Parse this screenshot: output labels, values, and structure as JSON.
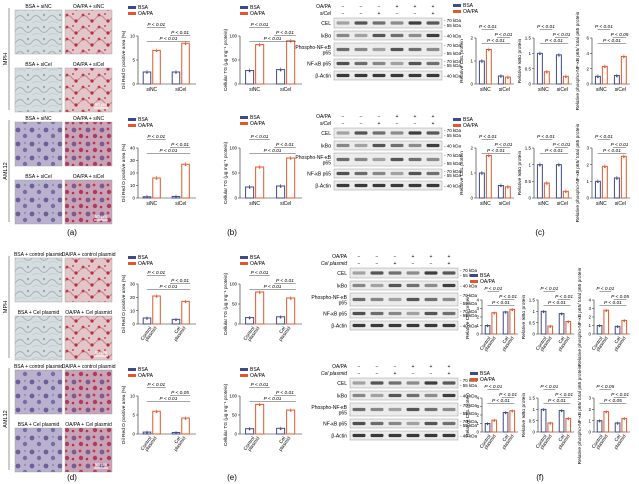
{
  "legend": {
    "bsa": "BSA",
    "oapa": "OA/PA",
    "bsa_color": "#3f4a8a",
    "oapa_color": "#e0582d"
  },
  "panel_letters": [
    "(a)",
    "(b)",
    "(c)",
    "(d)",
    "(e)",
    "(f)"
  ],
  "stats": {
    "p01": "P < 0.01",
    "p05": "P < 0.05"
  },
  "scale_bar": "50 μm",
  "cell_lines": {
    "mph": "MPH",
    "aml12": "AML12"
  },
  "micro_top": {
    "tl": "BSA + siNC",
    "tr": "OA/PA + siNC",
    "bl": "BSA + siCel",
    "br": "OA/PA + siCel"
  },
  "micro_bottom": {
    "tl": "BSA + control plasmid",
    "tr": "OA/PA + control plasmid",
    "bl": "BSA + Cel plasmid",
    "br": "OA/PA + Cel plasmid"
  },
  "axis": {
    "oil_red": "Oil Red O positive area (%)",
    "tg": "Cellular TG (μg mg⁻¹ protein)",
    "cel": "Relative CEL protein",
    "ikba": "Relative IκBα protein",
    "pnfkb": "Relative phospho-NF-κB p65/ total p65 protein"
  },
  "groups_si": [
    "siNC",
    "siCel"
  ],
  "groups_plasmid": [
    "Control plasmid",
    "Cel plasmid"
  ],
  "blot": {
    "row_oapa": "OA/PA",
    "row_sicel": "siCel",
    "row_celp": "Cel plasmid",
    "signs_si": {
      "oapa": [
        "−",
        "−",
        "−",
        "+",
        "+",
        "+"
      ],
      "sicel": [
        "−",
        "−",
        "+",
        "−",
        "−",
        "+"
      ]
    },
    "signs_pl": {
      "oapa": [
        "−",
        "−",
        "−",
        "+",
        "+",
        "+"
      ],
      "celp": [
        "−",
        "−",
        "+",
        "−",
        "−",
        "+"
      ]
    },
    "bands": [
      "CEL",
      "IκBα",
      "Phospho-NF-κB p65",
      "NF-κB p65",
      "β-Actin"
    ],
    "kda": [
      "70 kDa",
      "55 kDa",
      "40 kDa",
      "70 kDa",
      "55 kDa",
      "70 kDa",
      "55 kDa",
      "40 kDa"
    ]
  },
  "chart_data": [
    {
      "id": "a-top",
      "type": "bar",
      "categories": [
        "siNC",
        "siCel"
      ],
      "series": [
        {
          "name": "BSA",
          "values": [
            2.5,
            2.5
          ]
        },
        {
          "name": "OA/PA",
          "values": [
            7.0,
            8.5
          ]
        }
      ],
      "ylim": [
        0,
        10
      ],
      "yticks": [
        0,
        5,
        10
      ]
    },
    {
      "id": "a-bot",
      "type": "bar",
      "categories": [
        "siNC",
        "siCel"
      ],
      "series": [
        {
          "name": "BSA",
          "values": [
            1.0,
            1.2
          ]
        },
        {
          "name": "OA/PA",
          "values": [
            16,
            27
          ]
        }
      ],
      "ylim": [
        0,
        40
      ],
      "yticks": [
        0,
        10,
        20,
        30,
        40
      ]
    },
    {
      "id": "b-top",
      "type": "bar",
      "categories": [
        "siNC",
        "siCel"
      ],
      "series": [
        {
          "name": "BSA",
          "values": [
            28,
            30
          ]
        },
        {
          "name": "OA/PA",
          "values": [
            82,
            90
          ]
        }
      ],
      "ylim": [
        0,
        100
      ],
      "yticks": [
        0,
        50,
        100
      ]
    },
    {
      "id": "b-bot",
      "type": "bar",
      "categories": [
        "siNC",
        "siCel"
      ],
      "series": [
        {
          "name": "BSA",
          "values": [
            22,
            24
          ]
        },
        {
          "name": "OA/PA",
          "values": [
            62,
            80
          ]
        }
      ],
      "ylim": [
        0,
        100
      ],
      "yticks": [
        0,
        50,
        100
      ]
    },
    {
      "id": "d-top",
      "type": "bar",
      "categories": [
        "Control plasmid",
        "Cel plasmid"
      ],
      "series": [
        {
          "name": "BSA",
          "values": [
            4.5,
            3.5
          ]
        },
        {
          "name": "OA/PA",
          "values": [
            21,
            17
          ]
        }
      ],
      "ylim": [
        0,
        30
      ],
      "yticks": [
        0,
        10,
        20,
        30
      ]
    },
    {
      "id": "d-bot",
      "type": "bar",
      "categories": [
        "Control plasmid",
        "Cel plasmid"
      ],
      "series": [
        {
          "name": "BSA",
          "values": [
            0.5,
            0.4
          ]
        },
        {
          "name": "OA/PA",
          "values": [
            6.0,
            4.2
          ]
        }
      ],
      "ylim": [
        0,
        10
      ],
      "yticks": [
        0,
        5,
        10
      ]
    },
    {
      "id": "e-top",
      "type": "bar",
      "categories": [
        "Control plasmid",
        "Cel plasmid"
      ],
      "series": [
        {
          "name": "BSA",
          "values": [
            16,
            18
          ]
        },
        {
          "name": "OA/PA",
          "values": [
            80,
            65
          ]
        }
      ],
      "ylim": [
        0,
        100
      ],
      "yticks": [
        0,
        50,
        100
      ]
    },
    {
      "id": "e-bot",
      "type": "bar",
      "categories": [
        "Control plasmid",
        "Cel plasmid"
      ],
      "series": [
        {
          "name": "BSA",
          "values": [
            14,
            15
          ]
        },
        {
          "name": "OA/PA",
          "values": [
            78,
            63
          ]
        }
      ],
      "ylim": [
        0,
        100
      ],
      "yticks": [
        0,
        50,
        100
      ]
    },
    {
      "id": "c-top-cel",
      "type": "bar",
      "categories": [
        "siNC",
        "siCel"
      ],
      "series": [
        {
          "name": "BSA",
          "values": [
            1.0,
            0.35
          ]
        },
        {
          "name": "OA/PA",
          "values": [
            1.5,
            0.3
          ]
        }
      ],
      "ylim": [
        0,
        2
      ],
      "yticks": [
        0,
        1,
        2
      ]
    },
    {
      "id": "c-top-ikba",
      "type": "bar",
      "categories": [
        "siNC",
        "siCel"
      ],
      "series": [
        {
          "name": "BSA",
          "values": [
            1.0,
            0.95
          ]
        },
        {
          "name": "OA/PA",
          "values": [
            0.4,
            0.25
          ]
        }
      ],
      "ylim": [
        0,
        1.5
      ],
      "yticks": [
        0,
        0.5,
        1.0,
        1.5
      ]
    },
    {
      "id": "c-top-pnf",
      "type": "bar",
      "categories": [
        "siNC",
        "siCel"
      ],
      "series": [
        {
          "name": "BSA",
          "values": [
            1.0,
            1.1
          ]
        },
        {
          "name": "OA/PA",
          "values": [
            2.3,
            3.6
          ]
        }
      ],
      "ylim": [
        0,
        6
      ],
      "yticks": [
        0,
        2,
        4,
        6
      ]
    },
    {
      "id": "c-bot-cel",
      "type": "bar",
      "categories": [
        "siNC",
        "siCel"
      ],
      "series": [
        {
          "name": "BSA",
          "values": [
            1.0,
            0.5
          ]
        },
        {
          "name": "OA/PA",
          "values": [
            1.7,
            0.45
          ]
        }
      ],
      "ylim": [
        0,
        2
      ],
      "yticks": [
        0,
        1,
        2
      ]
    },
    {
      "id": "c-bot-ikba",
      "type": "bar",
      "categories": [
        "siNC",
        "siCel"
      ],
      "series": [
        {
          "name": "BSA",
          "values": [
            1.0,
            1.0
          ]
        },
        {
          "name": "OA/PA",
          "values": [
            0.45,
            0.2
          ]
        }
      ],
      "ylim": [
        0,
        1.5
      ],
      "yticks": [
        0,
        0.5,
        1.0,
        1.5
      ]
    },
    {
      "id": "c-bot-pnf",
      "type": "bar",
      "categories": [
        "siNC",
        "siCel"
      ],
      "series": [
        {
          "name": "BSA",
          "values": [
            1.0,
            1.2
          ]
        },
        {
          "name": "OA/PA",
          "values": [
            1.9,
            2.5
          ]
        }
      ],
      "ylim": [
        0,
        3
      ],
      "yticks": [
        0,
        1,
        2,
        3
      ]
    },
    {
      "id": "f-top-cel",
      "type": "bar",
      "categories": [
        "Control plasmid",
        "Cel plasmid"
      ],
      "series": [
        {
          "name": "BSA",
          "values": [
            1.0,
            2.6
          ]
        },
        {
          "name": "OA/PA",
          "values": [
            2.5,
            2.9
          ]
        }
      ],
      "ylim": [
        0,
        4
      ],
      "yticks": [
        0,
        1,
        2,
        3,
        4
      ]
    },
    {
      "id": "f-top-ikba",
      "type": "bar",
      "categories": [
        "Control plasmid",
        "Cel plasmid"
      ],
      "series": [
        {
          "name": "BSA",
          "values": [
            1.0,
            0.9
          ]
        },
        {
          "name": "OA/PA",
          "values": [
            0.35,
            0.55
          ]
        }
      ],
      "ylim": [
        0,
        1.5
      ],
      "yticks": [
        0,
        0.5,
        1.0,
        1.5
      ]
    },
    {
      "id": "f-top-pnf",
      "type": "bar",
      "categories": [
        "Control plasmid",
        "Cel plasmid"
      ],
      "series": [
        {
          "name": "BSA",
          "values": [
            1.0,
            0.9
          ]
        },
        {
          "name": "OA/PA",
          "values": [
            2.8,
            1.6
          ]
        }
      ],
      "ylim": [
        0,
        4
      ],
      "yticks": [
        0,
        1,
        2,
        3,
        4
      ]
    },
    {
      "id": "f-bot-cel",
      "type": "bar",
      "categories": [
        "Control plasmid",
        "Cel plasmid"
      ],
      "series": [
        {
          "name": "BSA",
          "values": [
            1.0,
            2.3
          ]
        },
        {
          "name": "OA/PA",
          "values": [
            1.4,
            2.5
          ]
        }
      ],
      "ylim": [
        0,
        4
      ],
      "yticks": [
        0,
        1,
        2,
        3,
        4
      ]
    },
    {
      "id": "f-bot-ikba",
      "type": "bar",
      "categories": [
        "Control plasmid",
        "Cel plasmid"
      ],
      "series": [
        {
          "name": "BSA",
          "values": [
            1.0,
            0.95
          ]
        },
        {
          "name": "OA/PA",
          "values": [
            0.4,
            0.6
          ]
        }
      ],
      "ylim": [
        0,
        1.5
      ],
      "yticks": [
        0,
        0.5,
        1.0,
        1.5
      ]
    },
    {
      "id": "f-bot-pnf",
      "type": "bar",
      "categories": [
        "Control plasmid",
        "Cel plasmid"
      ],
      "series": [
        {
          "name": "BSA",
          "values": [
            1.0,
            0.8
          ]
        },
        {
          "name": "OA/PA",
          "values": [
            1.8,
            1.2
          ]
        }
      ],
      "ylim": [
        0,
        3
      ],
      "yticks": [
        0,
        1,
        2,
        3
      ]
    }
  ]
}
